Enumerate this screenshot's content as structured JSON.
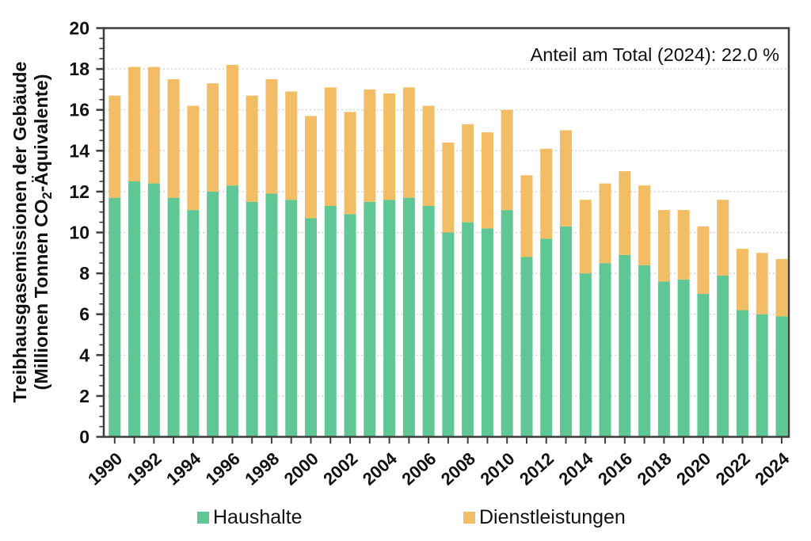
{
  "chart_data": {
    "type": "bar",
    "stacked": true,
    "title": "",
    "ylabel_line1": "Treibhausgasemissionen der Gebäude",
    "ylabel_line2": "(Millionen Tonnen CO2-Äquivalente)",
    "annotation": "Anteil am Total (2024):  22.0 %",
    "categories": [
      1990,
      1991,
      1992,
      1993,
      1994,
      1995,
      1996,
      1997,
      1998,
      1999,
      2000,
      2001,
      2002,
      2003,
      2004,
      2005,
      2006,
      2007,
      2008,
      2009,
      2010,
      2011,
      2012,
      2013,
      2014,
      2015,
      2016,
      2017,
      2018,
      2019,
      2020,
      2021,
      2022,
      2023,
      2024
    ],
    "series": [
      {
        "name": "Haushalte",
        "color": "#5ec794",
        "values": [
          11.7,
          12.5,
          12.4,
          11.7,
          11.1,
          12.0,
          12.3,
          11.5,
          11.9,
          11.6,
          10.7,
          11.3,
          10.9,
          11.5,
          11.6,
          11.7,
          11.3,
          10.0,
          10.5,
          10.2,
          11.1,
          8.8,
          9.7,
          10.3,
          8.0,
          8.5,
          8.9,
          8.4,
          7.6,
          7.7,
          7.0,
          7.9,
          6.2,
          6.0,
          5.9
        ]
      },
      {
        "name": "Dienstleistungen",
        "color": "#f3bd66",
        "values": [
          5.0,
          5.6,
          5.7,
          5.8,
          5.1,
          5.3,
          5.9,
          5.2,
          5.6,
          5.3,
          5.0,
          5.8,
          5.0,
          5.5,
          5.2,
          5.4,
          4.9,
          4.4,
          4.8,
          4.7,
          4.9,
          4.0,
          4.4,
          4.7,
          3.6,
          3.9,
          4.1,
          3.9,
          3.5,
          3.4,
          3.3,
          3.7,
          3.0,
          3.0,
          2.8
        ]
      }
    ],
    "ylim": [
      0,
      20
    ],
    "ytick_labels": [
      "0",
      "2",
      "4",
      "6",
      "8",
      "10",
      "12",
      "14",
      "16",
      "18",
      "20"
    ],
    "xtick_labels": [
      "1990",
      "1992",
      "1994",
      "1996",
      "1998",
      "2000",
      "2002",
      "2004",
      "2006",
      "2008",
      "2010",
      "2012",
      "2014",
      "2016",
      "2018",
      "2020",
      "2022",
      "2024"
    ],
    "grid": "horizontal-dotted",
    "legend_position": "bottom",
    "axis_color": "#3d3d3d",
    "grid_color": "#cccccc"
  }
}
